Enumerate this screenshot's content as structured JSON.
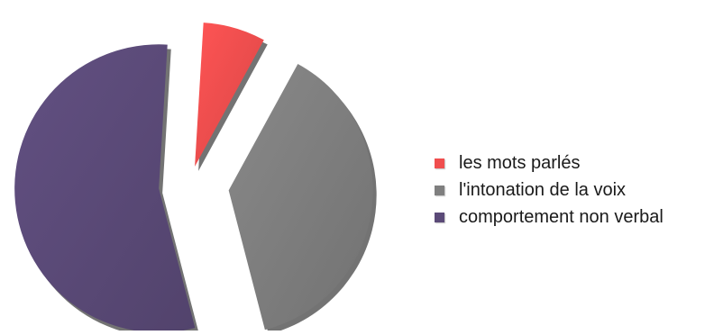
{
  "chart_data": {
    "type": "pie",
    "title": "",
    "exploded": true,
    "legend_position": "right",
    "categories": [
      "les mots parlés",
      "l'intonation de la voix",
      "comportement non verbal"
    ],
    "values": [
      7,
      38,
      55
    ],
    "unit": "%",
    "colors": [
      "#f04e4e",
      "#7f7f7f",
      "#5b4a78"
    ]
  }
}
